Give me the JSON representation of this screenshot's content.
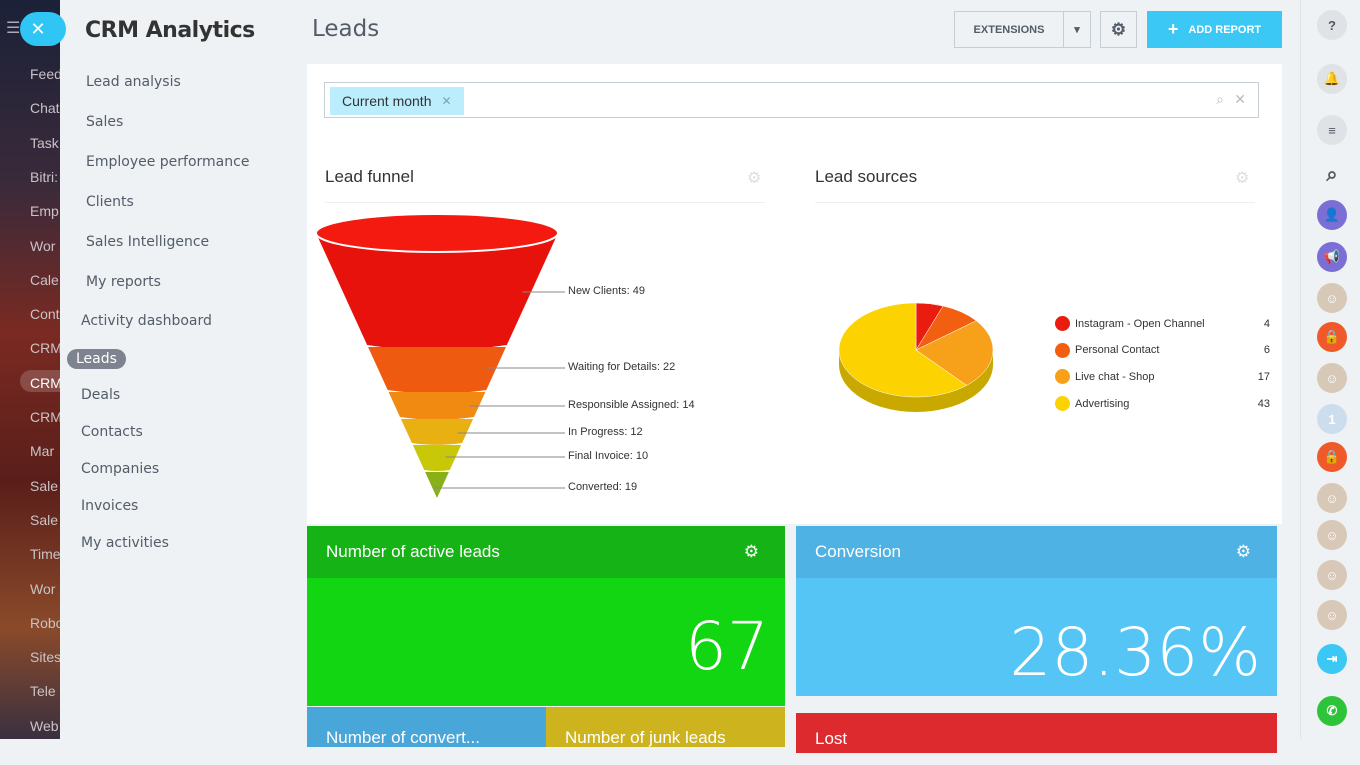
{
  "leftbar": {
    "items": [
      "Feed",
      "Chat",
      "Task",
      "Bitri:",
      "Emp",
      "Wor",
      "Cale",
      "Cont",
      "CRM",
      "CRM",
      "CRM",
      "Mar",
      "Sale",
      "Sale",
      "Time",
      "Wor",
      "Robo",
      "Sites",
      "Tele",
      "Web"
    ],
    "active_index": 9
  },
  "menu": {
    "title": "CRM Analytics",
    "sub_items": [
      "Lead analysis",
      "Sales",
      "Employee performance",
      "Clients",
      "Sales Intelligence",
      "My reports"
    ],
    "items": [
      "Activity dashboard",
      "Leads",
      "Deals",
      "Contacts",
      "Companies",
      "Invoices",
      "My activities"
    ],
    "active": "Leads"
  },
  "header": {
    "title": "Leads",
    "extensions_label": "EXTENSIONS",
    "add_report_label": "ADD REPORT",
    "accent": "#3bc8f5"
  },
  "filter": {
    "chip": "Current month"
  },
  "funnel": {
    "title": "Lead funnel",
    "stages": [
      {
        "label": "New Clients: 49",
        "color": "#e8120c"
      },
      {
        "label": "Waiting for Details: 22",
        "color": "#ee5a10"
      },
      {
        "label": "Responsible Assigned: 14",
        "color": "#f08a10"
      },
      {
        "label": "In Progress: 12",
        "color": "#e8b010"
      },
      {
        "label": "Final Invoice: 10",
        "color": "#c8c808"
      },
      {
        "label": "Converted: 19",
        "color": "#88b018"
      }
    ]
  },
  "sources": {
    "title": "Lead sources",
    "items": [
      {
        "label": "Instagram - Open Channel",
        "value": "4",
        "color": "#ea1c10"
      },
      {
        "label": "Personal Contact",
        "value": "6",
        "color": "#f25f10"
      },
      {
        "label": "Live chat - Shop",
        "value": "17",
        "color": "#f7a11a"
      },
      {
        "label": "Advertising",
        "value": "43",
        "color": "#fcd200"
      }
    ]
  },
  "tiles": {
    "active_leads": {
      "title": "Number of active leads",
      "value": "67"
    },
    "conversion": {
      "title": "Conversion",
      "value": "28.36%"
    },
    "converted": {
      "title": "Number of convert..."
    },
    "junk": {
      "title": "Number of junk leads"
    },
    "lost": {
      "title": "Lost"
    }
  },
  "rightbar": {
    "icons": [
      "help-icon",
      "bell-icon",
      "chat-icon",
      "search-icon",
      "crm-avatar",
      "megaphone-icon",
      "avatar",
      "lock-icon",
      "avatar",
      "anniversary-icon",
      "lock-icon",
      "avatar",
      "avatar",
      "avatar",
      "avatar",
      "exit-icon",
      "phone-icon"
    ]
  }
}
